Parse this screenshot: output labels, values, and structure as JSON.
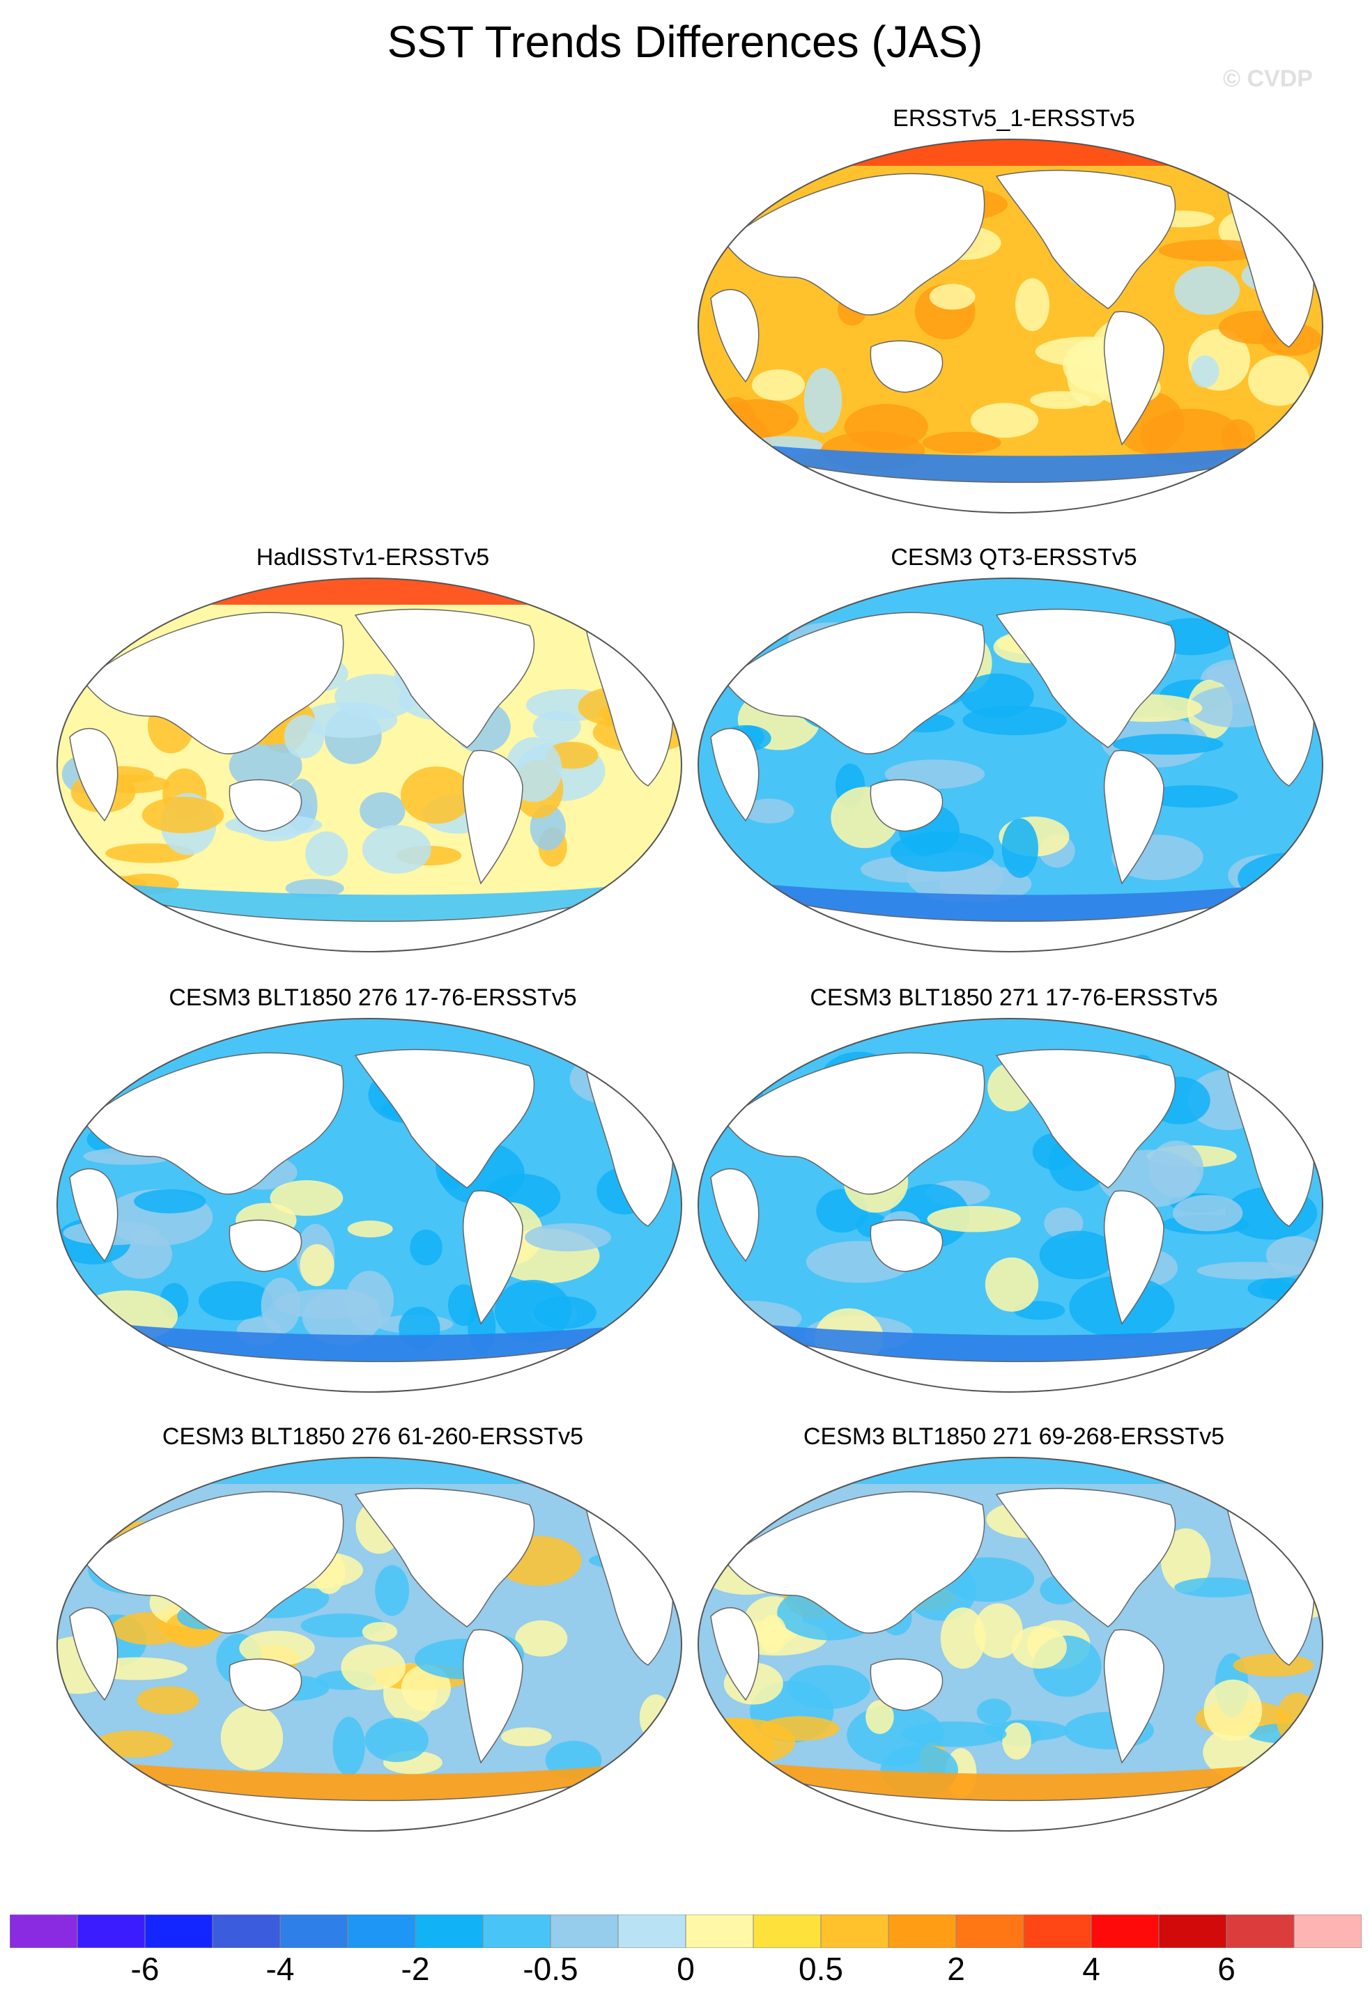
{
  "title": "SST Trends Differences (JAS)",
  "credit": "© CVDP",
  "panels": [
    {
      "title": "ERSSTv5_1-ERSSTv5",
      "north_bias": "warm",
      "tone": "warm",
      "col": 1,
      "row": 0
    },
    {
      "title": "HadISSTv1-ERSSTv5",
      "north_bias": "warm",
      "tone": "mixed-warm",
      "col": 0,
      "row": 1
    },
    {
      "title": "CESM3 QT3-ERSSTv5",
      "north_bias": "cool",
      "tone": "cool",
      "col": 1,
      "row": 1
    },
    {
      "title": "CESM3 BLT1850 276 17-76-ERSSTv5",
      "north_bias": "cool",
      "tone": "cool",
      "col": 0,
      "row": 2
    },
    {
      "title": "CESM3 BLT1850 271 17-76-ERSSTv5",
      "north_bias": "cool",
      "tone": "cool",
      "col": 1,
      "row": 2
    },
    {
      "title": "CESM3 BLT1850 276 61-260-ERSSTv5",
      "north_bias": "cool",
      "tone": "mixed-cool",
      "col": 0,
      "row": 3
    },
    {
      "title": "CESM3 BLT1850 271 69-268-ERSSTv5",
      "north_bias": "cool",
      "tone": "mixed-cool",
      "col": 1,
      "row": 3
    }
  ],
  "colorbar": {
    "colors": [
      "#8a2be2",
      "#3b1cff",
      "#1426ff",
      "#3b5cdc",
      "#2f7fe8",
      "#1e96f5",
      "#12b2f7",
      "#49c4f7",
      "#96ccec",
      "#b9e3f5",
      "#fff8a6",
      "#ffe13c",
      "#ffc22c",
      "#ff9e14",
      "#ff7614",
      "#ff4614",
      "#ff0a0a",
      "#d20a0a",
      "#dc3c3c",
      "#ffb4b4"
    ],
    "labels": [
      {
        "text": "-6",
        "boundary": 2
      },
      {
        "text": "-4",
        "boundary": 4
      },
      {
        "text": "-2",
        "boundary": 6
      },
      {
        "text": "-0.5",
        "boundary": 8
      },
      {
        "text": "0",
        "boundary": 10
      },
      {
        "text": "0.5",
        "boundary": 12
      },
      {
        "text": "2",
        "boundary": 14
      },
      {
        "text": "4",
        "boundary": 16
      },
      {
        "text": "6",
        "boundary": 18
      }
    ]
  }
}
